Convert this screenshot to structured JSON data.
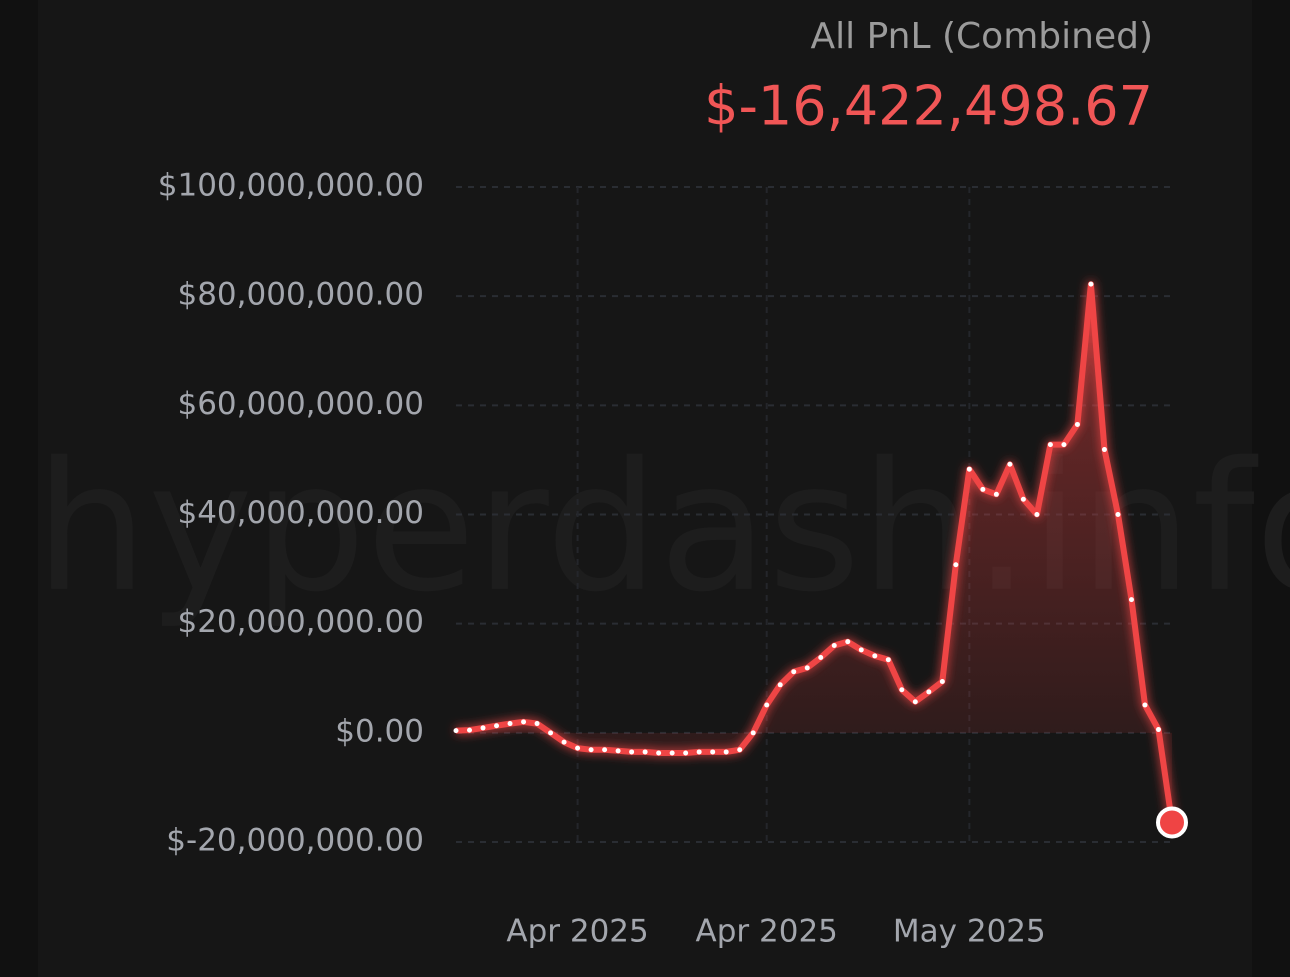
{
  "chart_data": {
    "type": "line",
    "title": "All PnL (Combined)",
    "headline": "$-16,422,498.67",
    "watermark": "hyperdash.info",
    "categories": [
      null,
      null,
      null,
      null,
      null,
      null,
      null,
      null,
      null,
      "Apr 2025",
      null,
      null,
      null,
      null,
      null,
      null,
      null,
      null,
      null,
      null,
      null,
      null,
      null,
      "Apr 2025",
      null,
      null,
      null,
      null,
      null,
      null,
      null,
      null,
      null,
      null,
      null,
      null,
      null,
      null,
      "May 2025",
      null,
      null,
      null,
      null,
      null,
      null,
      null,
      null,
      null,
      null,
      null,
      null,
      null,
      null,
      null
    ],
    "series": [
      {
        "name": "All PnL",
        "color": "#ef4444",
        "values": [
          400000,
          500000,
          900000,
          1300000,
          1700000,
          2000000,
          1700000,
          0,
          -1700000,
          -2800000,
          -3100000,
          -3100000,
          -3300000,
          -3500000,
          -3500000,
          -3700000,
          -3700000,
          -3700000,
          -3500000,
          -3500000,
          -3500000,
          -3100000,
          0,
          5100000,
          8800000,
          11200000,
          11900000,
          13800000,
          16000000,
          16700000,
          15200000,
          14100000,
          13400000,
          7900000,
          5700000,
          7500000,
          9400000,
          30800000,
          48300000,
          44600000,
          43700000,
          49200000,
          42800000,
          40000000,
          52800000,
          52800000,
          56500000,
          82200000,
          51900000,
          40000000,
          24400000,
          5100000,
          600000,
          -16422498.67
        ]
      }
    ],
    "ylim": [
      -20000000,
      100000000
    ],
    "yticks": [
      {
        "value": -20000000,
        "label": "$-20,000,000.00"
      },
      {
        "value": 0,
        "label": "$0.00"
      },
      {
        "value": 20000000,
        "label": "$20,000,000.00"
      },
      {
        "value": 40000000,
        "label": "$40,000,000.00"
      },
      {
        "value": 60000000,
        "label": "$60,000,000.00"
      },
      {
        "value": 80000000,
        "label": "$80,000,000.00"
      },
      {
        "value": 100000000,
        "label": "$100,000,000.00"
      }
    ],
    "grid": true
  }
}
